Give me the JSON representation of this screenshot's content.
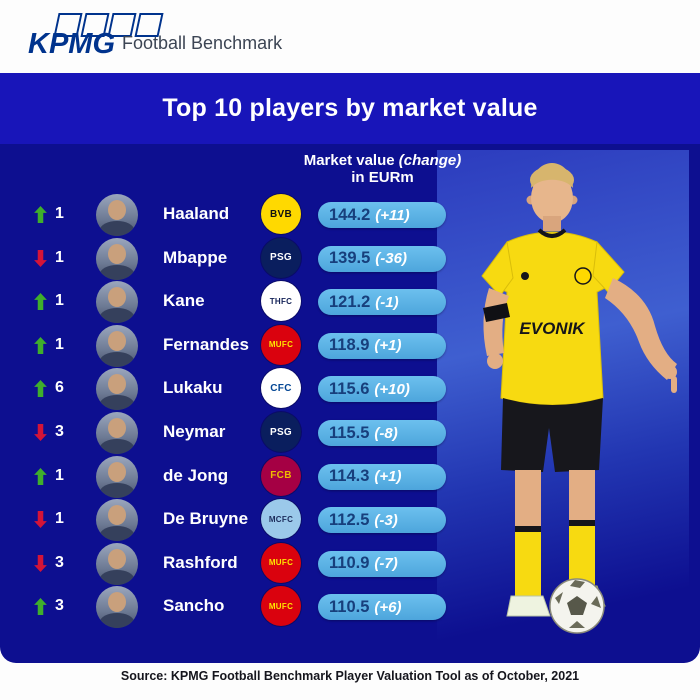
{
  "brand": {
    "logo_text": "KPMG",
    "tagline": "Football Benchmark"
  },
  "title": "Top 10 players by market value",
  "column_header": {
    "label": "Market value (change) in EURm",
    "line1_regular": "Market value ",
    "line1_italic": "(change)",
    "line2": "in EURm"
  },
  "player_figure": {
    "name": "Erling Haaland",
    "jersey_sponsor": "EVONIK",
    "jersey_club": "Borussia Dortmund"
  },
  "footer": {
    "source": "Source: KPMG Football Benchmark Player Valuation Tool as of October, 2021"
  },
  "colors": {
    "title_band_blue": "#1815b9",
    "panel_blue": "#0d0f90",
    "pill_blue_light": "#6cc0ee",
    "pill_blue_dark": "#4da5dc",
    "value_text_navy": "#173f7c",
    "up_green": "#3fae2c",
    "down_red": "#d41438",
    "kpmg_blue": "#00338D"
  },
  "chart_data": {
    "type": "table",
    "title": "Top 10 players by market value",
    "value_header": "Market value (change) in EURm",
    "columns": [
      "Rank movement",
      "Places moved",
      "Player",
      "Club",
      "Market value in EURm",
      "Change in EURm"
    ],
    "rows": [
      {
        "rank": 1,
        "movement": "up",
        "places": 1,
        "player": "Haaland",
        "club": "Borussia Dortmund",
        "abbr": "BVB",
        "badge_bg": "#ffd900",
        "badge_fg": "#111111",
        "market_value_eurm": 144.2,
        "change": "+11"
      },
      {
        "rank": 2,
        "movement": "down",
        "places": 1,
        "player": "Mbappe",
        "club": "Paris Saint-Germain",
        "abbr": "PSG",
        "badge_bg": "#0a1e5e",
        "badge_fg": "#ffffff",
        "market_value_eurm": 139.5,
        "change": "-36"
      },
      {
        "rank": 3,
        "movement": "up",
        "places": 1,
        "player": "Kane",
        "club": "Tottenham Hotspur",
        "abbr": "THFC",
        "badge_bg": "#ffffff",
        "badge_fg": "#132257",
        "market_value_eurm": 121.2,
        "change": "-1"
      },
      {
        "rank": 4,
        "movement": "up",
        "places": 1,
        "player": "Fernandes",
        "club": "Manchester United",
        "abbr": "MUFC",
        "badge_bg": "#da020e",
        "badge_fg": "#ffe500",
        "market_value_eurm": 118.9,
        "change": "+1"
      },
      {
        "rank": 5,
        "movement": "up",
        "places": 6,
        "player": "Lukaku",
        "club": "Chelsea",
        "abbr": "CFC",
        "badge_bg": "#ffffff",
        "badge_fg": "#034694",
        "market_value_eurm": 115.6,
        "change": "+10"
      },
      {
        "rank": 6,
        "movement": "down",
        "places": 3,
        "player": "Neymar",
        "club": "Paris Saint-Germain",
        "abbr": "PSG",
        "badge_bg": "#0a1e5e",
        "badge_fg": "#ffffff",
        "market_value_eurm": 115.5,
        "change": "-8"
      },
      {
        "rank": 7,
        "movement": "up",
        "places": 1,
        "player": "de Jong",
        "club": "FC Barcelona",
        "abbr": "FCB",
        "badge_bg": "#a50044",
        "badge_fg": "#edbb00",
        "market_value_eurm": 114.3,
        "change": "+1"
      },
      {
        "rank": 8,
        "movement": "down",
        "places": 1,
        "player": "De Bruyne",
        "club": "Manchester City",
        "abbr": "MCFC",
        "badge_bg": "#9bc9ea",
        "badge_fg": "#1c2c5b",
        "market_value_eurm": 112.5,
        "change": "-3"
      },
      {
        "rank": 9,
        "movement": "down",
        "places": 3,
        "player": "Rashford",
        "club": "Manchester United",
        "abbr": "MUFC",
        "badge_bg": "#da020e",
        "badge_fg": "#ffe500",
        "market_value_eurm": 110.9,
        "change": "-7"
      },
      {
        "rank": 10,
        "movement": "up",
        "places": 3,
        "player": "Sancho",
        "club": "Manchester United",
        "abbr": "MUFC",
        "badge_bg": "#da020e",
        "badge_fg": "#ffe500",
        "market_value_eurm": 110.5,
        "change": "+6"
      }
    ],
    "source": "Source: KPMG Football Benchmark Player Valuation Tool as of October, 2021"
  }
}
